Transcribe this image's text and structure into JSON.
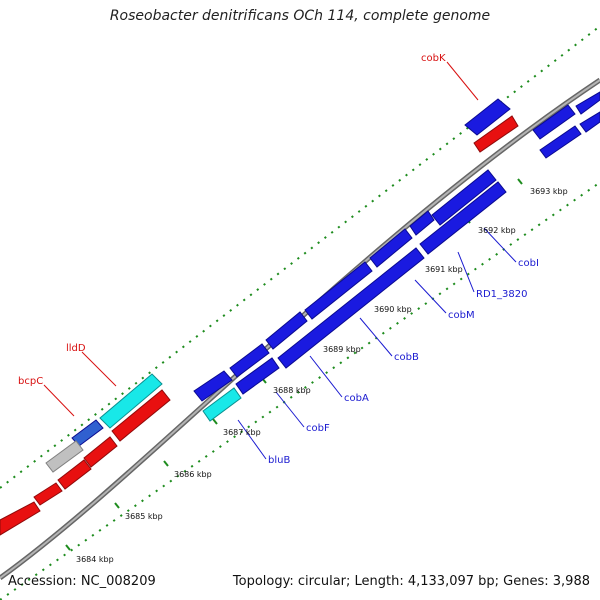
{
  "title": "Roseobacter denitrificans OCh 114, complete genome",
  "accession": "Accession: NC_008209",
  "summary": "Topology: circular; Length: 4,133,097 bp; Genes: 3,988",
  "colors": {
    "backbone": "#8c8c8c",
    "gene_blue": "#1010e8",
    "gene_red": "#e81010",
    "gene_cyan": "#18e8e8",
    "gene_grey": "#c0c0c0",
    "gene_label_blue": "#1a1ad0",
    "gene_label_red": "#d81010",
    "tick_green": "#1e8c1e"
  },
  "ticks": [
    {
      "label": "3684 kbp"
    },
    {
      "label": "3685 kbp"
    },
    {
      "label": "3686 kbp"
    },
    {
      "label": "3687 kbp"
    },
    {
      "label": "3688 kbp"
    },
    {
      "label": "3689 kbp"
    },
    {
      "label": "3690 kbp"
    },
    {
      "label": "3691 kbp"
    },
    {
      "label": "3692 kbp"
    },
    {
      "label": "3693 kbp"
    }
  ],
  "gene_labels": [
    {
      "text": "cobK",
      "color": "red"
    },
    {
      "text": "lldD",
      "color": "red"
    },
    {
      "text": "bcpC",
      "color": "red"
    },
    {
      "text": "cobI",
      "color": "blue"
    },
    {
      "text": "RD1_3820",
      "color": "blue"
    },
    {
      "text": "cobM",
      "color": "blue"
    },
    {
      "text": "cobB",
      "color": "blue"
    },
    {
      "text": "cobA",
      "color": "blue"
    },
    {
      "text": "cobF",
      "color": "blue"
    },
    {
      "text": "bluB",
      "color": "blue"
    }
  ]
}
